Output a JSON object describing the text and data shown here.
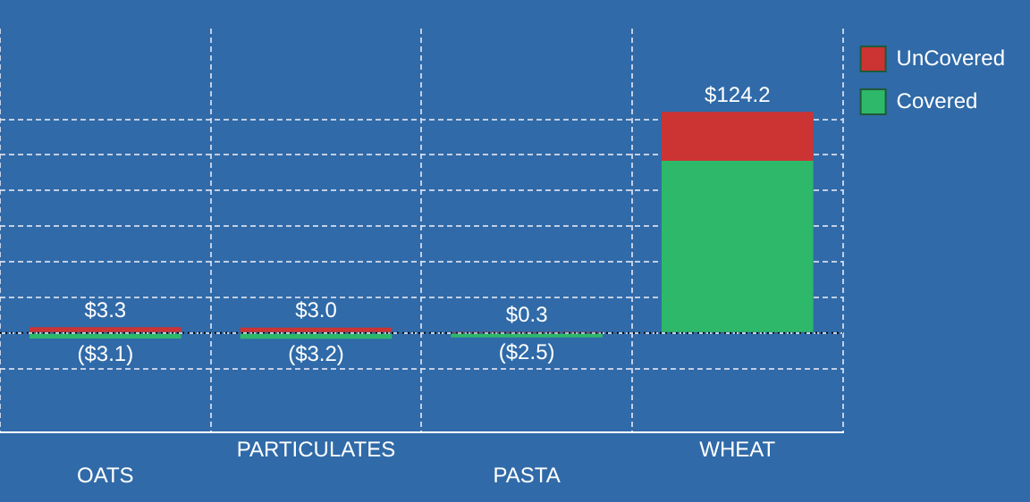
{
  "chart_data": {
    "type": "bar",
    "stacked": true,
    "categories": [
      "OATS",
      "PARTICULATES",
      "PASTA",
      "WHEAT"
    ],
    "series": [
      {
        "name": "Covered",
        "color": "#2eb86a",
        "values": [
          -3.1,
          -3.2,
          -2.5,
          96.8
        ],
        "value_labels": [
          "($3.1)",
          "($3.2)",
          "($2.5)",
          null
        ]
      },
      {
        "name": "UnCovered",
        "color": "#cc3333",
        "values": [
          3.3,
          3.0,
          0.3,
          27.4
        ],
        "value_labels": [
          "$3.3",
          "$3.0",
          "$0.3",
          null
        ]
      }
    ],
    "totals": [
      null,
      null,
      null,
      "$124.2"
    ],
    "ylim": [
      -56,
      171
    ],
    "yticks": [
      {
        "value": -20,
        "label": null
      },
      {
        "value": 0,
        "label": null
      },
      {
        "value": 20,
        "label": null
      },
      {
        "value": 40,
        "label": null
      },
      {
        "value": 60,
        "label": null
      },
      {
        "value": 80,
        "label": null
      },
      {
        "value": 100,
        "label": null
      },
      {
        "value": 120,
        "label": null
      }
    ],
    "ref_lines": [
      {
        "axis": "y",
        "value": 0,
        "color": "#000000",
        "line_style": "dotted"
      }
    ],
    "tick_labels": "x",
    "grid": true,
    "legend": "top right"
  }
}
